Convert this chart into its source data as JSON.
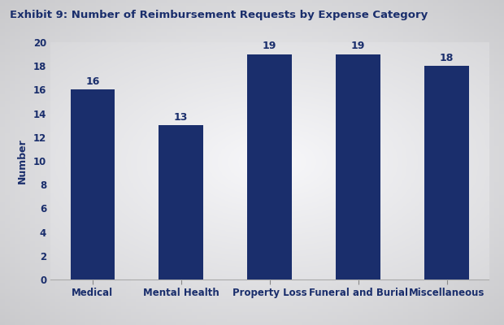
{
  "title": "Exhibit 9: Number of Reimbursement Requests by Expense Category",
  "categories": [
    "Medical",
    "Mental Health",
    "Property Loss",
    "Funeral and Burial",
    "Miscellaneous"
  ],
  "values": [
    16,
    13,
    19,
    19,
    18
  ],
  "bar_color": "#1a2e6c",
  "ylabel": "Number",
  "ylim": [
    0,
    20
  ],
  "yticks": [
    0,
    2,
    4,
    6,
    8,
    10,
    12,
    14,
    16,
    18,
    20
  ],
  "title_color": "#1a2e6c",
  "label_color": "#1a2e6c",
  "title_fontsize": 9.5,
  "axis_label_fontsize": 9,
  "tick_label_fontsize": 8.5,
  "bar_label_fontsize": 9,
  "bar_width": 0.5
}
